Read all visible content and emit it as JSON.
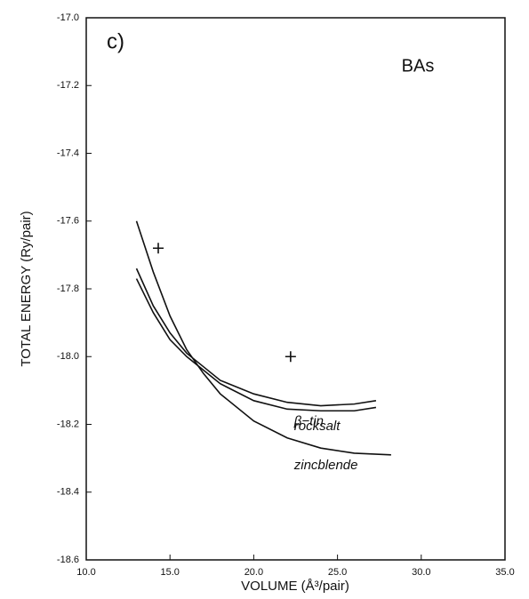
{
  "chart_data": {
    "type": "line",
    "panel_label": "c)",
    "annotation": "BAs",
    "xlabel": "VOLUME (Å³/pair)",
    "ylabel": "TOTAL ENERGY (Ry/pair)",
    "xlim": [
      10,
      35
    ],
    "ylim": [
      -18.6,
      -17.0
    ],
    "xticks": [
      {
        "value": 10,
        "label": "10.0"
      },
      {
        "value": 15,
        "label": "15.0"
      },
      {
        "value": 20,
        "label": "20.0"
      },
      {
        "value": 25,
        "label": "25.0"
      },
      {
        "value": 30,
        "label": "30.0"
      },
      {
        "value": 35,
        "label": "35.0"
      }
    ],
    "yticks": [
      {
        "value": -18.6,
        "label": "-18.6"
      },
      {
        "value": -18.4,
        "label": "-18.4"
      },
      {
        "value": -18.2,
        "label": "-18.2"
      },
      {
        "value": -18.0,
        "label": "-18.0"
      },
      {
        "value": -17.8,
        "label": "-17.8"
      },
      {
        "value": -17.6,
        "label": "-17.6"
      },
      {
        "value": -17.4,
        "label": "-17.4"
      },
      {
        "value": -17.2,
        "label": "-17.2"
      },
      {
        "value": -17.0,
        "label": "-17.0"
      }
    ],
    "series": [
      {
        "name": "β−tin",
        "color": "#111111",
        "x": [
          13,
          14,
          15,
          16,
          17,
          18,
          20,
          22,
          24,
          26,
          27.3
        ],
        "values": [
          -17.74,
          -17.85,
          -17.93,
          -17.99,
          -18.03,
          -18.07,
          -18.11,
          -18.135,
          -18.145,
          -18.14,
          -18.13
        ]
      },
      {
        "name": "rocksalt",
        "color": "#111111",
        "x": [
          13,
          14,
          15,
          16,
          17,
          18,
          20,
          22,
          24,
          26,
          27.3
        ],
        "values": [
          -17.77,
          -17.87,
          -17.95,
          -18.0,
          -18.04,
          -18.08,
          -18.13,
          -18.155,
          -18.16,
          -18.16,
          -18.15
        ]
      },
      {
        "name": "zincblende",
        "color": "#111111",
        "x": [
          13,
          14,
          15,
          16,
          17,
          18,
          20,
          22,
          24,
          26,
          28.2
        ],
        "values": [
          -17.6,
          -17.75,
          -17.88,
          -17.98,
          -18.05,
          -18.11,
          -18.19,
          -18.24,
          -18.27,
          -18.285,
          -18.29
        ]
      }
    ],
    "markers": {
      "x": [
        14.3,
        22.2
      ],
      "values": [
        -17.68,
        -18.0
      ]
    }
  }
}
